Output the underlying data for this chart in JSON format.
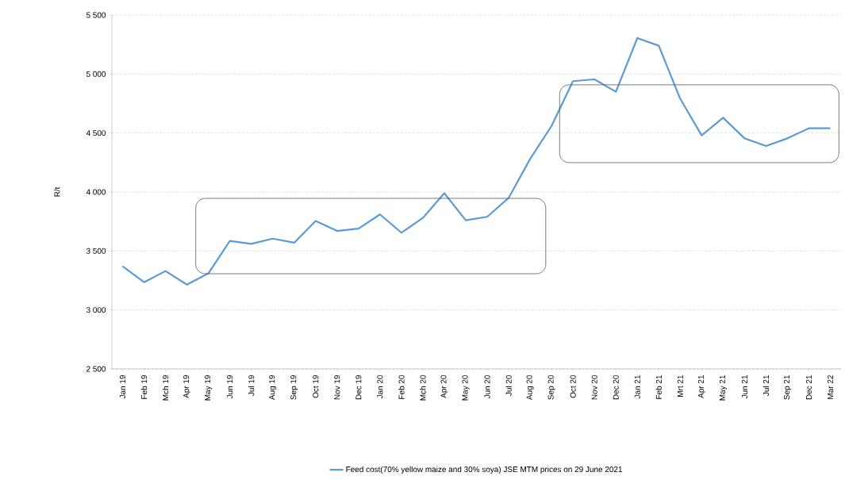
{
  "chart_data": {
    "type": "line",
    "categories": [
      "Jan 19",
      "Feb 19",
      "Mch 19",
      "Apr 19",
      "May 19",
      "Jun 19",
      "Jul 19",
      "Aug 19",
      "Sep 19",
      "Oct 19",
      "Nov 19",
      "Dec 19",
      "Jan 20",
      "Feb 20",
      "Mch 20",
      "Apr 20",
      "May 20",
      "Jun 20",
      "Jul 20",
      "Aug 20",
      "Sep 20",
      "Oct 20",
      "Nov 20",
      "Dec 20",
      "Jan 21",
      "Feb 21",
      "Mrt 21",
      "Apr 21",
      "May 21",
      "Jun 21",
      "Jul 21",
      "Sep 21",
      "Dec 21",
      "Mar 22"
    ],
    "series": [
      {
        "name": "Feed cost(70% yellow maize and 30% soya) JSE MTM prices on 29 June 2021",
        "color": "#5b9bd5",
        "values": [
          3370,
          3235,
          3330,
          3215,
          3310,
          3585,
          3560,
          3605,
          3570,
          3755,
          3670,
          3690,
          3810,
          3655,
          3780,
          3990,
          3760,
          3790,
          3950,
          4280,
          4560,
          4940,
          4955,
          4850,
          5305,
          5240,
          4790,
          4480,
          4630,
          4455,
          4390,
          4455,
          4540,
          4540
        ]
      }
    ],
    "ylabel": "R/t",
    "ylim": [
      2500,
      5500
    ],
    "yticks": [
      {
        "value": 2500,
        "label": "2 500"
      },
      {
        "value": 3000,
        "label": "3 000"
      },
      {
        "value": 3500,
        "label": "3 500"
      },
      {
        "value": 4000,
        "label": "4 000"
      },
      {
        "value": 4500,
        "label": "4 500"
      },
      {
        "value": 5000,
        "label": "5 000"
      },
      {
        "value": 5500,
        "label": "5 500"
      }
    ],
    "grid": "y",
    "legend": "bottom",
    "marker": "none",
    "line_style": "solid"
  }
}
